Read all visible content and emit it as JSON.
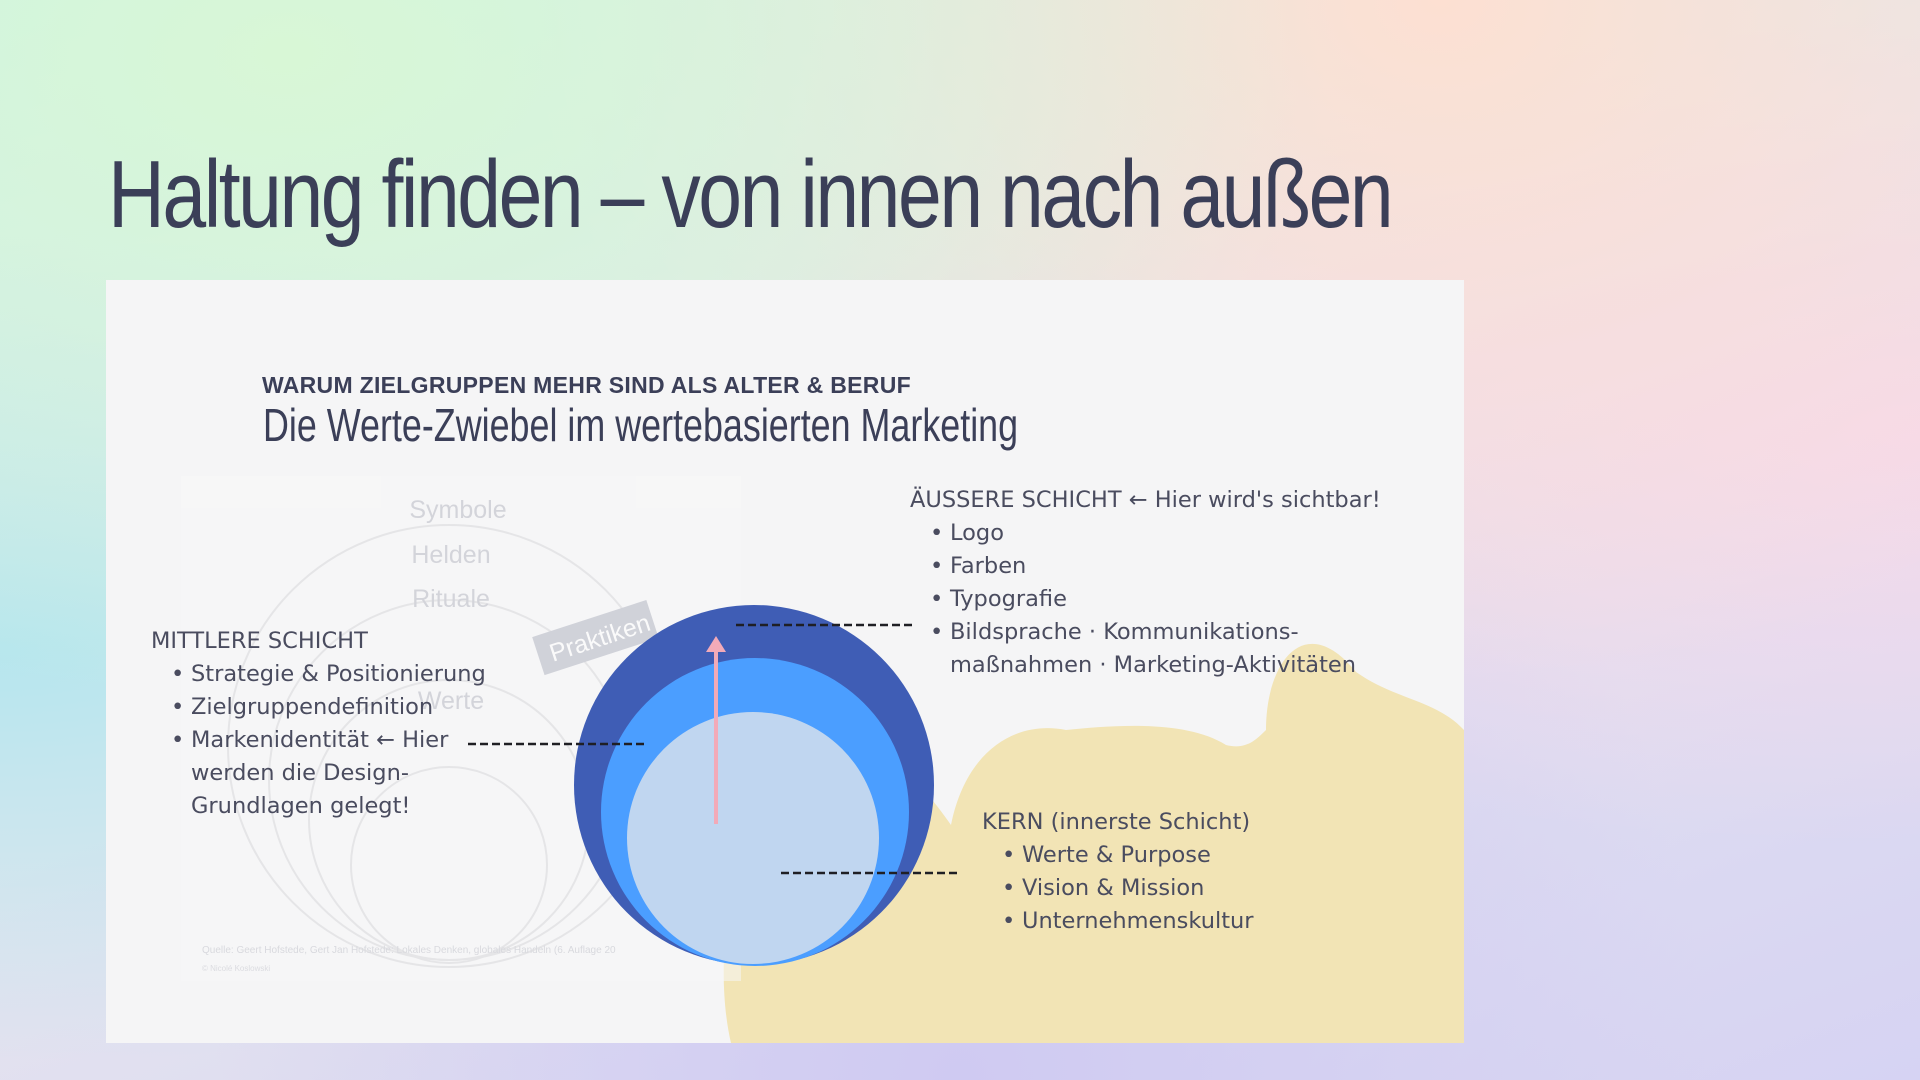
{
  "slide": {
    "title": "Haltung finden – von innen nach außen"
  },
  "card": {
    "eyebrow": "WARUM ZIELGRUPPEN MEHR SIND ALS ALTER & BERUF",
    "title": "Die Werte-Zwiebel im wertebasierten Marketing",
    "background_diagram": {
      "labels": [
        "Symbole",
        "Helden",
        "Rituale",
        "Werte"
      ],
      "practice_band": "Praktiken",
      "source": "Quelle: Geert Hofstede, Gert Jan Hofstede: Lokales Denken, globales Handeln (6. Auflage 20",
      "source_sub": "© Nicolé Koslowski"
    },
    "layers": {
      "outer": {
        "heading": "ÄUSSERE SCHICHT ← Hier wird's sichtbar!",
        "items": [
          "Logo",
          "Farben",
          "Typografie",
          "Bildsprache · Kommunikations-maßnahmen · Marketing-Aktivitäten"
        ]
      },
      "middle": {
        "heading": "MITTLERE SCHICHT",
        "items": [
          "Strategie & Positionierung",
          "Zielgruppendefinition",
          "Markenidentität ← Hier werden die Design-Grundlagen gelegt!"
        ]
      },
      "core": {
        "heading": "KERN (innerste Schicht)",
        "items": [
          "Werte & Purpose",
          "Vision & Mission",
          "Unternehmenskultur"
        ]
      }
    }
  },
  "colors": {
    "title": "#3b3f58",
    "card_bg": "#f5f5f6",
    "outer_circle": "#3f5db5",
    "middle_circle": "#4b9eff",
    "inner_circle": "#c0d6f0",
    "arrow": "#f2aab8",
    "blob": "#f2e4b5"
  },
  "icons": {
    "arrow": "arrow-up-icon"
  }
}
